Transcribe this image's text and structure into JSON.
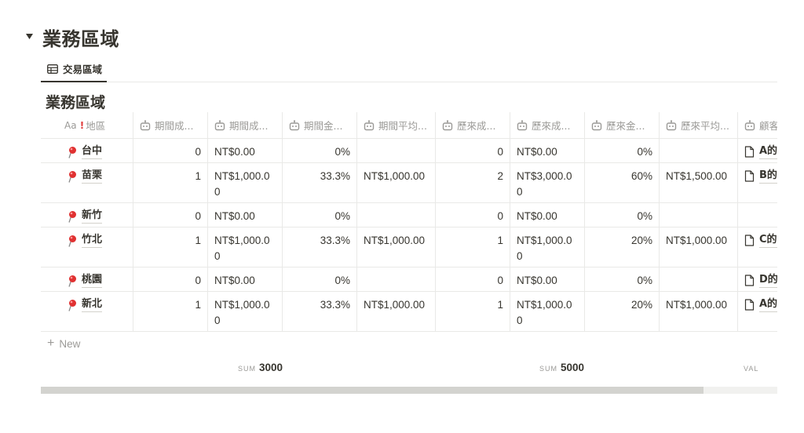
{
  "toggle": {
    "title": "業務區域"
  },
  "tabs": [
    {
      "label": "交易區域",
      "icon": "table-icon"
    }
  ],
  "database": {
    "title": "業務區域",
    "name_prefix": "Aa",
    "name_marker": "!",
    "columns": [
      {
        "label": "地區",
        "icon": "text-icon"
      },
      {
        "label": "期間成...",
        "icon": "formula-icon"
      },
      {
        "label": "期間成...",
        "icon": "formula-icon"
      },
      {
        "label": "期間金...",
        "icon": "formula-icon"
      },
      {
        "label": "期間平均...",
        "icon": "formula-icon"
      },
      {
        "label": "歷來成...",
        "icon": "formula-icon"
      },
      {
        "label": "歷來成...",
        "icon": "formula-icon"
      },
      {
        "label": "歷來金...",
        "icon": "formula-icon"
      },
      {
        "label": "歷來平均...",
        "icon": "formula-icon"
      },
      {
        "label": "顧客",
        "icon": "formula-icon"
      }
    ],
    "rows": [
      {
        "name": "台中",
        "c1": "0",
        "c2": "NT$0.00",
        "c3": "0%",
        "c4": "",
        "c5": "0",
        "c6": "NT$0.00",
        "c7": "0%",
        "c8": "",
        "c9": "A的"
      },
      {
        "name": "苗栗",
        "c1": "1",
        "c2": "NT$1,000.00",
        "c3": "33.3%",
        "c4": "NT$1,000.00",
        "c5": "2",
        "c6": "NT$3,000.00",
        "c7": "60%",
        "c8": "NT$1,500.00",
        "c9": "B的"
      },
      {
        "name": "新竹",
        "c1": "0",
        "c2": "NT$0.00",
        "c3": "0%",
        "c4": "",
        "c5": "0",
        "c6": "NT$0.00",
        "c7": "0%",
        "c8": "",
        "c9": ""
      },
      {
        "name": "竹北",
        "c1": "1",
        "c2": "NT$1,000.00",
        "c3": "33.3%",
        "c4": "NT$1,000.00",
        "c5": "1",
        "c6": "NT$1,000.00",
        "c7": "20%",
        "c8": "NT$1,000.00",
        "c9": "C的"
      },
      {
        "name": "桃園",
        "c1": "0",
        "c2": "NT$0.00",
        "c3": "0%",
        "c4": "",
        "c5": "0",
        "c6": "NT$0.00",
        "c7": "0%",
        "c8": "",
        "c9": "D的"
      },
      {
        "name": "新北",
        "c1": "1",
        "c2": "NT$1,000.00",
        "c3": "33.3%",
        "c4": "NT$1,000.00",
        "c5": "1",
        "c6": "NT$1,000.00",
        "c7": "20%",
        "c8": "NT$1,000.00",
        "c9": "A的"
      }
    ],
    "new_label": "New",
    "calculations": {
      "sum1": {
        "label": "SUM",
        "value": "3000"
      },
      "sum2": {
        "label": "SUM",
        "value": "5000"
      },
      "val": {
        "label": "VAL"
      }
    }
  },
  "scrollbar": {
    "position_fraction": 0.9
  }
}
